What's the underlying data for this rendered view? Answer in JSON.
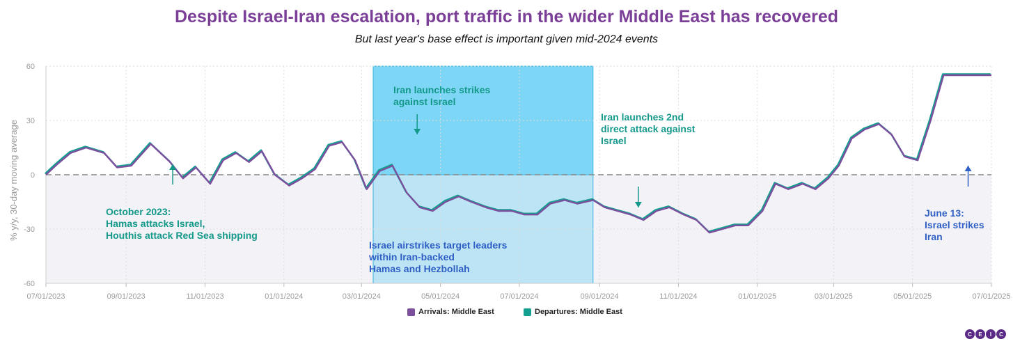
{
  "title": "Despite Israel-Iran escalation, port traffic in the wider Middle East has recovered",
  "subtitle": "But last year's base effect is important given mid-2024 events",
  "logo": [
    "C",
    "E",
    "I",
    "C"
  ],
  "colors": {
    "arrivals": "#7b4f9e",
    "departures": "#14a090",
    "teal_text": "#13988a",
    "blue_text": "#2f5fc4",
    "highlight_top": "#7dd6f5",
    "highlight_bottom": "#bde4f4",
    "negative_fill": "#f3f3f7"
  },
  "annotations": {
    "oct2023": [
      "October 2023:",
      "Hamas attacks Israel,",
      "Houthis attack Red Sea shipping"
    ],
    "apr2024": [
      "Iran launches strikes",
      "against Israel"
    ],
    "oct2024": [
      "Iran launches 2nd",
      "direct attack against",
      "Israel"
    ],
    "israel_airstrikes": [
      "Israel airstrikes target leaders",
      "within Iran-backed",
      "Hamas and Hezbollah"
    ],
    "june13": [
      "June 13:",
      "Israel strikes",
      "Iran"
    ]
  },
  "chart_data": {
    "type": "line",
    "ylabel": "% y/y, 30-day moving average",
    "xlabel": "",
    "ylim": [
      -60,
      60
    ],
    "yticks": [
      60,
      30,
      0,
      -30,
      -60
    ],
    "xlim": [
      "2023-07-01",
      "2025-07-01"
    ],
    "xticks": [
      "07/01/2023",
      "09/01/2023",
      "11/01/2023",
      "01/01/2024",
      "03/01/2024",
      "05/01/2024",
      "07/01/2024",
      "09/01/2024",
      "11/01/2024",
      "01/01/2025",
      "03/01/2025",
      "05/01/2025",
      "07/01/2025"
    ],
    "grid": true,
    "legend_position": "bottom",
    "highlight_period": [
      "2024-03-10",
      "2024-08-27"
    ],
    "series": [
      {
        "name": "Arrivals: Middle East",
        "x": [
          "2023-07-01",
          "2023-07-10",
          "2023-07-20",
          "2023-08-01",
          "2023-08-15",
          "2023-08-25",
          "2023-09-05",
          "2023-09-20",
          "2023-10-05",
          "2023-10-15",
          "2023-10-25",
          "2023-11-05",
          "2023-11-15",
          "2023-11-25",
          "2023-12-05",
          "2023-12-15",
          "2023-12-25",
          "2024-01-05",
          "2024-01-15",
          "2024-01-25",
          "2024-02-05",
          "2024-02-15",
          "2024-02-25",
          "2024-03-05",
          "2024-03-15",
          "2024-03-25",
          "2024-04-05",
          "2024-04-15",
          "2024-04-25",
          "2024-05-05",
          "2024-05-15",
          "2024-05-25",
          "2024-06-05",
          "2024-06-15",
          "2024-06-25",
          "2024-07-05",
          "2024-07-15",
          "2024-07-25",
          "2024-08-05",
          "2024-08-15",
          "2024-08-27",
          "2024-09-05",
          "2024-09-15",
          "2024-09-25",
          "2024-10-05",
          "2024-10-15",
          "2024-10-25",
          "2024-11-05",
          "2024-11-15",
          "2024-11-25",
          "2024-12-05",
          "2024-12-15",
          "2024-12-25",
          "2025-01-05",
          "2025-01-15",
          "2025-01-25",
          "2025-02-05",
          "2025-02-15",
          "2025-02-25",
          "2025-03-05",
          "2025-03-15",
          "2025-03-25",
          "2025-04-05",
          "2025-04-15",
          "2025-04-25",
          "2025-05-05",
          "2025-05-15",
          "2025-05-25",
          "2025-06-05",
          "2025-06-15",
          "2025-06-22",
          "2025-07-01"
        ],
        "values": [
          0,
          6,
          12,
          15,
          12,
          4,
          5,
          17,
          7,
          -2,
          4,
          -5,
          8,
          12,
          7,
          13,
          0,
          -6,
          -2,
          3,
          16,
          18,
          8,
          -8,
          2,
          5,
          -10,
          -18,
          -20,
          -15,
          -12,
          -15,
          -18,
          -20,
          -20,
          -22,
          -22,
          -16,
          -14,
          -16,
          -14,
          -18,
          -20,
          -22,
          -25,
          -20,
          -18,
          -22,
          -25,
          -32,
          -30,
          -28,
          -28,
          -20,
          -5,
          -8,
          -5,
          -8,
          -2,
          5,
          20,
          25,
          28,
          22,
          10,
          8,
          30,
          55,
          55,
          55,
          55,
          55
        ]
      },
      {
        "name": "Departures: Middle East",
        "x": [],
        "values": []
      }
    ]
  }
}
